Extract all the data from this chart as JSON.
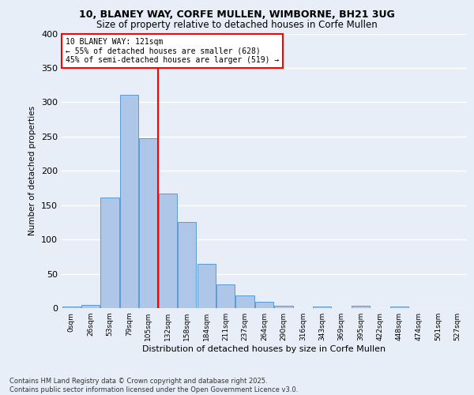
{
  "title_line1": "10, BLANEY WAY, CORFE MULLEN, WIMBORNE, BH21 3UG",
  "title_line2": "Size of property relative to detached houses in Corfe Mullen",
  "xlabel": "Distribution of detached houses by size in Corfe Mullen",
  "ylabel": "Number of detached properties",
  "bin_labels": [
    "0sqm",
    "26sqm",
    "53sqm",
    "79sqm",
    "105sqm",
    "132sqm",
    "158sqm",
    "184sqm",
    "211sqm",
    "237sqm",
    "264sqm",
    "290sqm",
    "316sqm",
    "343sqm",
    "369sqm",
    "395sqm",
    "422sqm",
    "448sqm",
    "474sqm",
    "501sqm",
    "527sqm"
  ],
  "bar_heights": [
    2,
    5,
    161,
    311,
    248,
    167,
    125,
    65,
    34,
    18,
    9,
    3,
    0,
    2,
    0,
    3,
    0,
    2,
    0,
    0,
    0
  ],
  "bar_color": "#aec6e8",
  "bar_edge_color": "#5b9bd5",
  "vline_x": 4.5,
  "vline_color": "red",
  "annotation_text": "10 BLANEY WAY: 121sqm\n← 55% of detached houses are smaller (628)\n45% of semi-detached houses are larger (519) →",
  "annotation_box_color": "white",
  "annotation_box_edge": "red",
  "ylim": [
    0,
    400
  ],
  "yticks": [
    0,
    50,
    100,
    150,
    200,
    250,
    300,
    350,
    400
  ],
  "footer_text": "Contains HM Land Registry data © Crown copyright and database right 2025.\nContains public sector information licensed under the Open Government Licence v3.0.",
  "background_color": "#e8eef7",
  "plot_background": "#e8eef7",
  "grid_color": "white"
}
